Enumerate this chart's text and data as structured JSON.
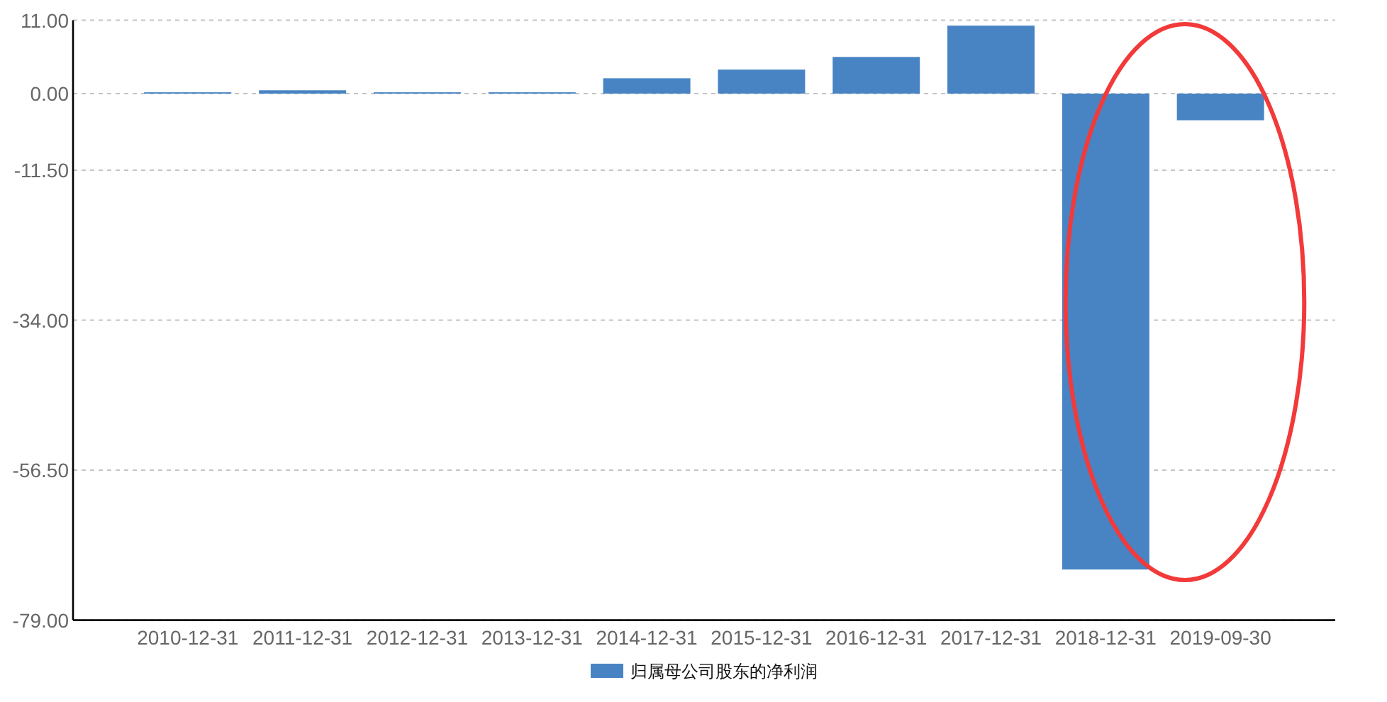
{
  "chart_data": {
    "type": "bar",
    "categories": [
      "2010-12-31",
      "2011-12-31",
      "2012-12-31",
      "2013-12-31",
      "2014-12-31",
      "2015-12-31",
      "2016-12-31",
      "2017-12-31",
      "2018-12-31",
      "2019-09-30"
    ],
    "series": [
      {
        "name": "归属母公司股东的净利润",
        "color": "#4884c4",
        "values": [
          0.2,
          0.5,
          0.2,
          0.2,
          2.3,
          3.6,
          5.5,
          10.2,
          -71.4,
          -4.0
        ]
      }
    ],
    "ylim": [
      -79,
      11
    ],
    "yticks": [
      {
        "value": 11,
        "label": "11.00"
      },
      {
        "value": 0,
        "label": "0.00"
      },
      {
        "value": -11.5,
        "label": "-11.50"
      },
      {
        "value": -34,
        "label": "-34.00"
      },
      {
        "value": -56.5,
        "label": "-56.50"
      },
      {
        "value": -79,
        "label": "-79.00"
      }
    ],
    "grid": "y",
    "legend": "bottom"
  }
}
